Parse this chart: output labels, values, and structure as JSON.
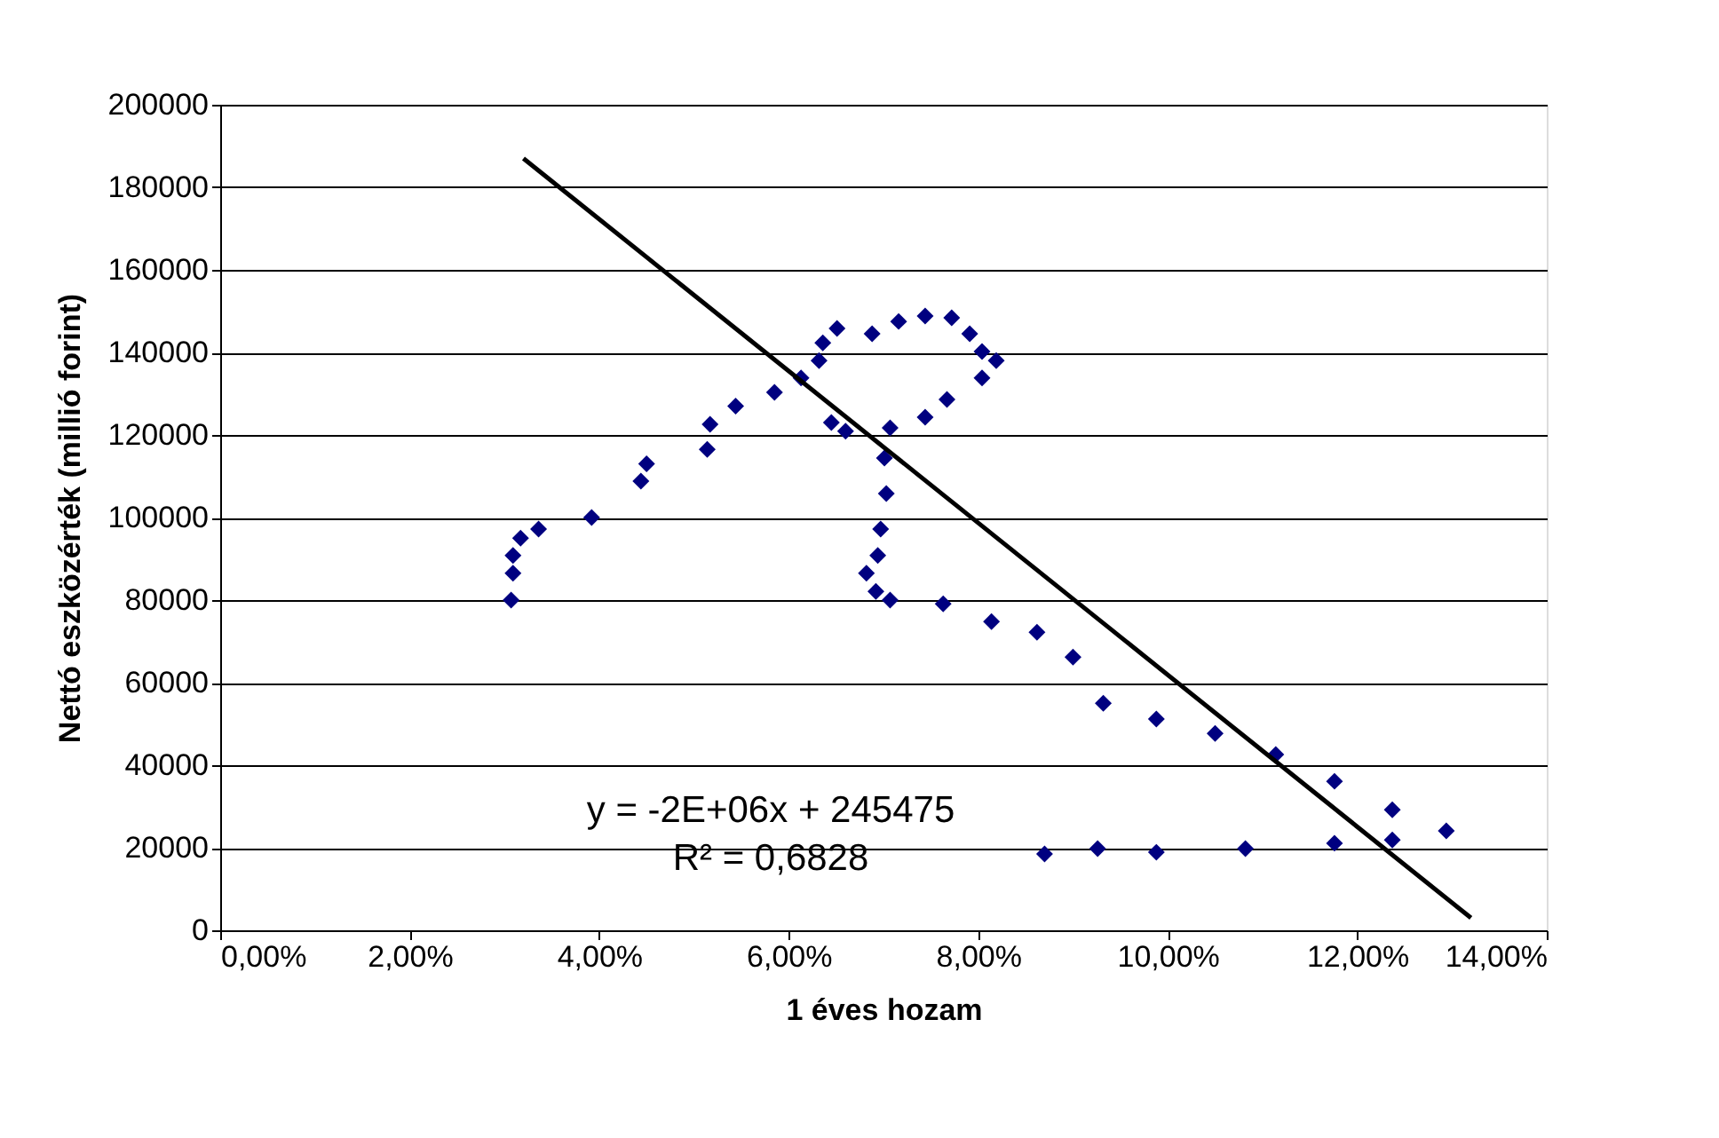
{
  "chart_data": {
    "type": "scatter",
    "xlabel": "1 éves hozam",
    "ylabel": "Nettó eszközérték (millió forint)",
    "xlim": [
      0,
      14
    ],
    "xticks": [
      {
        "value": 0,
        "label": "0,00%"
      },
      {
        "value": 2,
        "label": "2,00%"
      },
      {
        "value": 4,
        "label": "4,00%"
      },
      {
        "value": 6,
        "label": "6,00%"
      },
      {
        "value": 8,
        "label": "8,00%"
      },
      {
        "value": 10,
        "label": "10,00%"
      },
      {
        "value": 12,
        "label": "12,00%"
      },
      {
        "value": 14,
        "label": "14,00%"
      }
    ],
    "ylim": [
      0,
      200000
    ],
    "yticks": [
      0,
      20000,
      40000,
      60000,
      80000,
      100000,
      120000,
      140000,
      160000,
      180000,
      200000
    ],
    "grid": "y",
    "marker": "diamond",
    "annotations": [
      "y = -2E+06x + 245475",
      "R² = 0,6828"
    ],
    "series": [
      {
        "color": "#000080",
        "x": [
          3.07,
          3.09,
          3.09,
          3.17,
          3.36,
          3.92,
          4.44,
          4.5,
          5.14,
          5.17,
          5.44,
          5.85,
          6.13,
          6.32,
          6.36,
          6.51,
          6.88,
          7.16,
          7.44,
          7.72,
          7.91,
          8.04,
          8.19,
          8.04,
          7.67,
          7.44,
          7.07,
          6.6,
          6.45,
          7.01,
          7.03,
          6.97,
          6.94,
          6.82,
          6.92,
          7.07,
          7.63,
          8.14,
          8.62,
          9.0,
          9.32,
          9.88,
          10.5,
          11.14,
          11.76,
          12.37,
          12.94,
          12.37,
          11.76,
          10.82,
          9.88,
          9.26,
          8.7
        ],
        "values": [
          80000,
          86500,
          90800,
          95000,
          97200,
          100000,
          108800,
          113000,
          116500,
          122600,
          127000,
          130300,
          133800,
          138000,
          142300,
          145800,
          144500,
          147500,
          148800,
          148400,
          144500,
          140200,
          138000,
          133800,
          128600,
          124300,
          121700,
          120900,
          123000,
          114400,
          105800,
          97200,
          90800,
          86500,
          82100,
          80000,
          79100,
          74800,
          72200,
          66200,
          55000,
          51200,
          47700,
          42600,
          36100,
          29200,
          24100,
          21900,
          21100,
          19800,
          18900,
          19800,
          18500
        ]
      },
      {
        "type": "line",
        "marker": "none",
        "line_style": "solid",
        "color": "#000000",
        "x": [
          3.2,
          13.2
        ],
        "values": [
          187000,
          3000
        ]
      }
    ]
  }
}
